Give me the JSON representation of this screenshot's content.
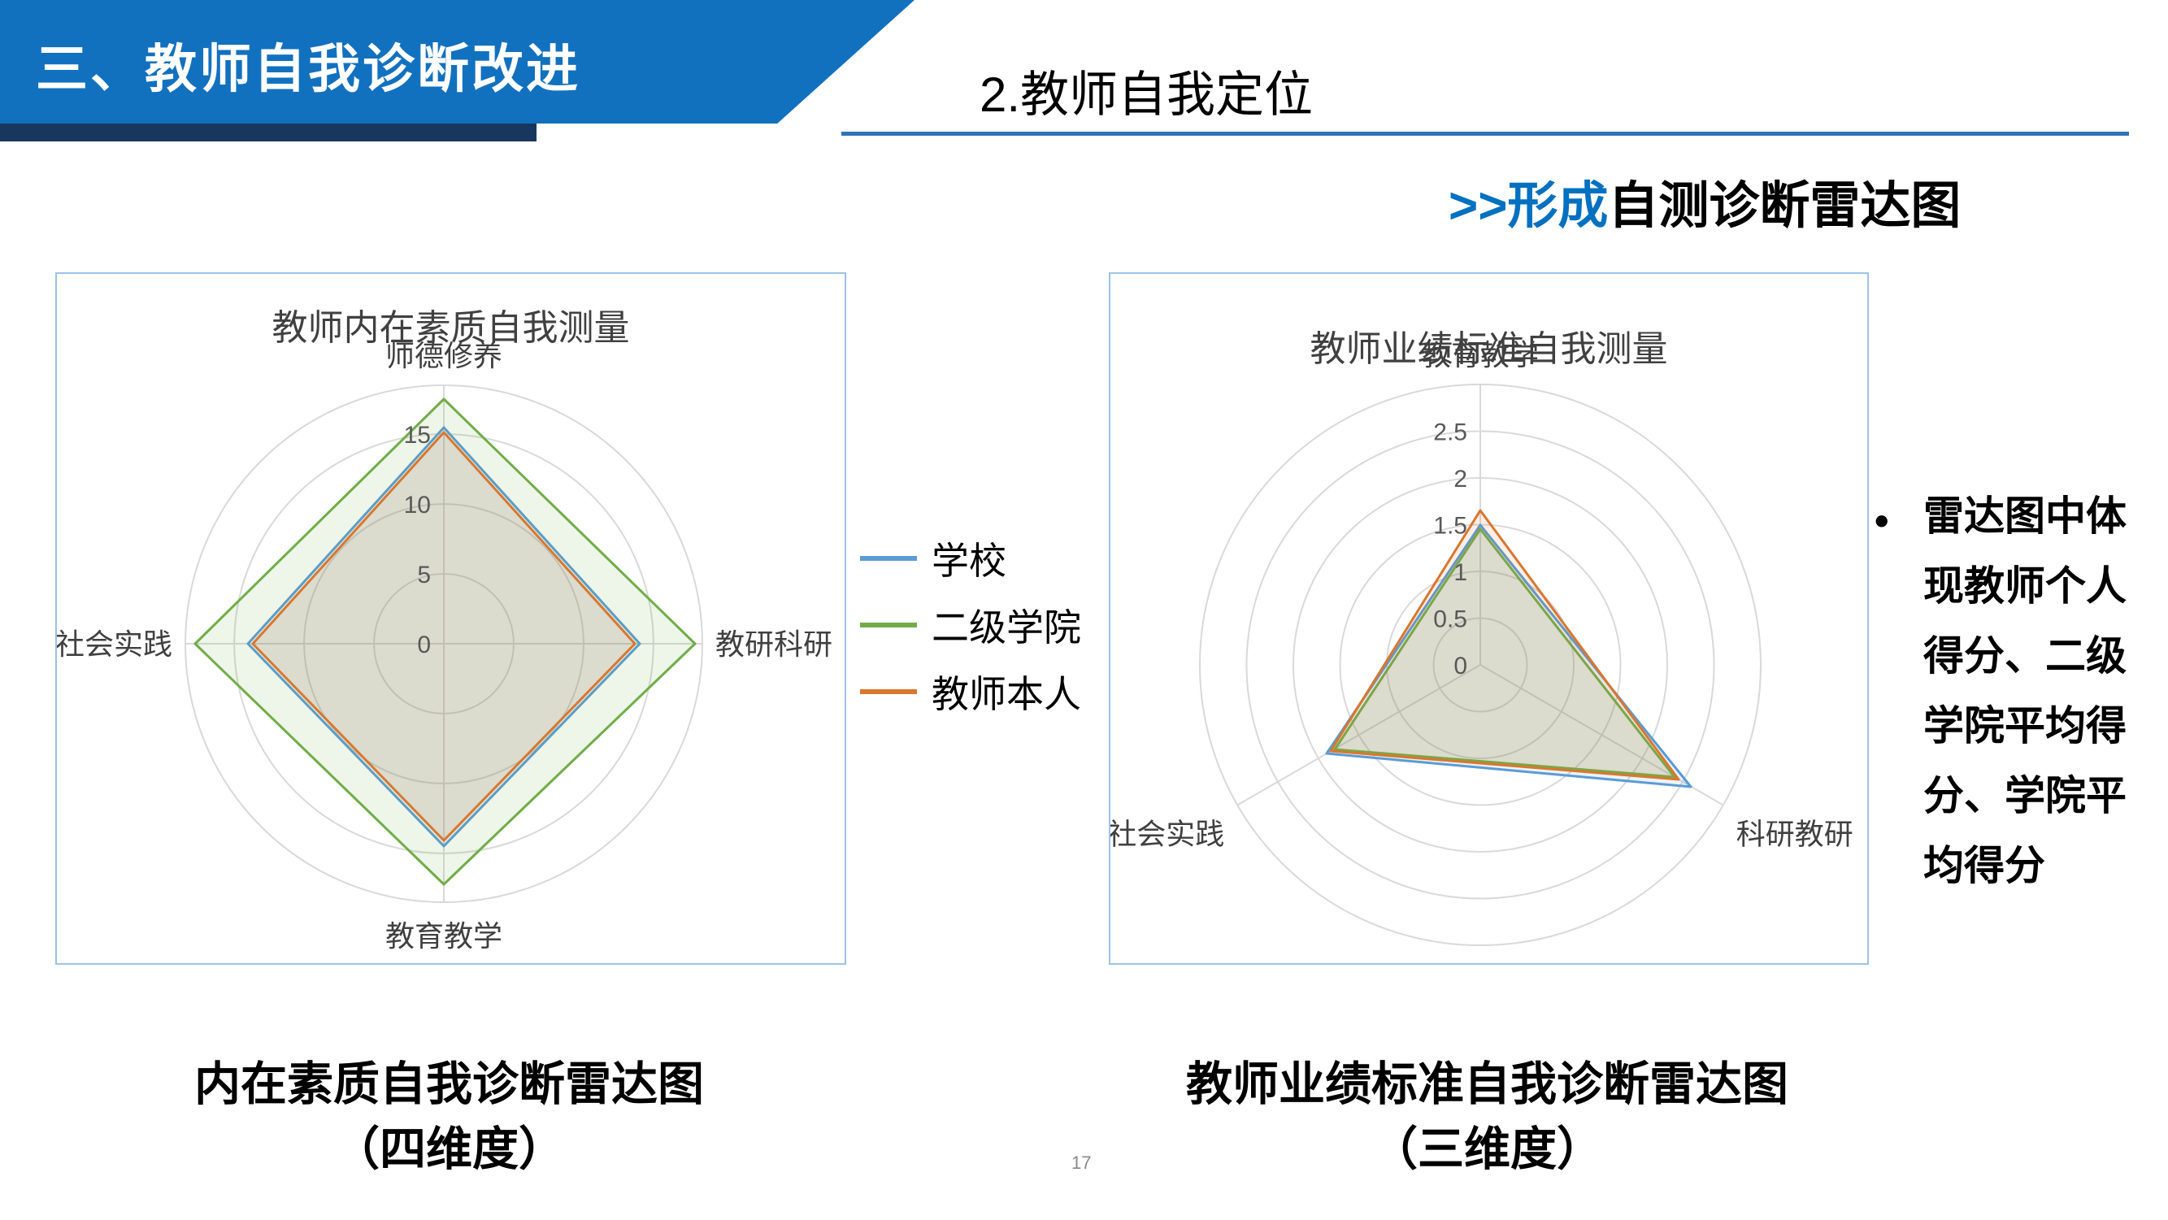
{
  "header": {
    "banner_title": "三、教师自我诊断改进",
    "section_title": "2.教师自我定位",
    "subtitle_prefix": ">>形成",
    "subtitle_main": "自测诊断雷达图"
  },
  "colors": {
    "banner": "#1271BF",
    "navy_strip": "#17375E",
    "underline": "#2E75B6",
    "subtitle_accent": "#0070C0",
    "chart_border": "#9DC3E6",
    "gridline": "#D9D9D9"
  },
  "legend": {
    "items": [
      {
        "label": "学校",
        "color": "#5B9BD5"
      },
      {
        "label": "二级学院",
        "color": "#70AD47"
      },
      {
        "label": "教师本人",
        "color": "#D9772F"
      }
    ]
  },
  "side_note": {
    "bullet": "•",
    "text": "雷达图中体现教师个人得分、二级学院平均得分、学院平均得分",
    "lines": [
      "雷达图中体",
      "现教师个人",
      "得分、二级",
      "学院平均得",
      "分、学院平",
      "均得分"
    ]
  },
  "page_number": "17",
  "chart_data": [
    {
      "type": "radar",
      "title": "教师内在素质自我测量",
      "categories": [
        "师德修养",
        "教研科研",
        "教育教学",
        "社会实践"
      ],
      "ticks": [
        0,
        5,
        10,
        15
      ],
      "max": 18.5,
      "grid": "circular",
      "legend_position": "right-of-chart",
      "series": [
        {
          "name": "学校",
          "color": "#5B9BD5",
          "values": [
            15.5,
            14,
            14.5,
            14
          ]
        },
        {
          "name": "二级学院",
          "color": "#70AD47",
          "values": [
            17.5,
            18,
            17.2,
            17.8
          ]
        },
        {
          "name": "教师本人",
          "color": "#D9772F",
          "values": [
            15.1,
            13.7,
            14.1,
            13.7
          ]
        }
      ],
      "caption_line1": "内在素质自我诊断雷达图",
      "caption_line2": "（四维度）"
    },
    {
      "type": "radar",
      "title": "教师业绩标准自我测量",
      "categories": [
        "教育教学",
        "科研教研",
        "社会实践"
      ],
      "ticks": [
        0,
        0.5,
        1,
        1.5,
        2,
        2.5
      ],
      "max": 3,
      "grid": "circular",
      "legend_position": "shared",
      "series": [
        {
          "name": "学校",
          "color": "#5B9BD5",
          "values": [
            1.5,
            2.6,
            1.9
          ]
        },
        {
          "name": "二级学院",
          "color": "#70AD47",
          "values": [
            1.45,
            2.4,
            1.8
          ]
        },
        {
          "name": "教师本人",
          "color": "#D9772F",
          "values": [
            1.65,
            2.45,
            1.85
          ]
        }
      ],
      "caption_line1": "教师业绩标准自我诊断雷达图",
      "caption_line2": "（三维度）"
    }
  ]
}
